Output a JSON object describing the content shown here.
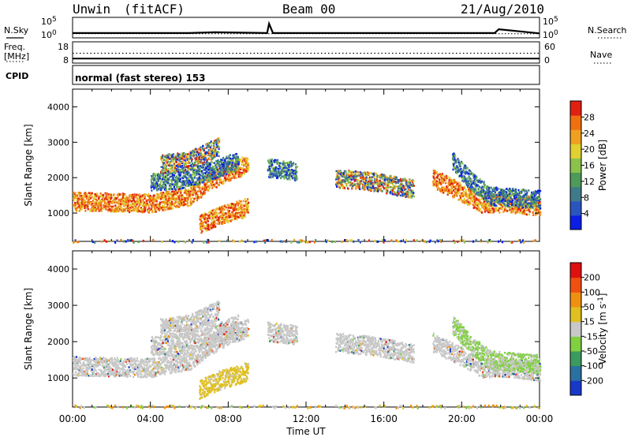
{
  "header": {
    "site": "Unwin",
    "mode": "(fitACF)",
    "beam": "Beam 00",
    "date": "21/Aug/2010"
  },
  "strip_labels": {
    "nsky": "N.Sky",
    "nsearch": "N.Search",
    "freq_line1": "Freq.",
    "freq_line2": "[MHz]",
    "nave": "Nave",
    "cpid": "CPID",
    "cpid_value": "normal (fast stereo) 153"
  },
  "chart_data": [
    {
      "type": "line",
      "name": "noise-strip",
      "y_left_ticks": [
        "10^5",
        "10^0"
      ],
      "y_right_ticks": [
        "10^5",
        "10^0"
      ],
      "series": [
        {
          "name": "N.Sky",
          "style": "solid",
          "x": [
            0,
            6,
            7.3,
            10,
            10.1,
            10.3,
            21.7,
            21.9,
            24
          ],
          "y": [
            1.3,
            1.3,
            1.5,
            1.3,
            3.8,
            1.3,
            1.3,
            2.3,
            1.2
          ]
        },
        {
          "name": "N.Search",
          "style": "dotted",
          "x": [
            0,
            24
          ],
          "y": [
            1.1,
            1.1
          ]
        }
      ]
    },
    {
      "type": "line",
      "name": "freq-nave-strip",
      "y_left_ticks": [
        "18",
        "8"
      ],
      "y_right_ticks": [
        "60",
        "0"
      ],
      "series": [
        {
          "name": "Freq.",
          "style": "dotted",
          "x": [
            0,
            24
          ],
          "y": [
            12.5,
            12.5
          ]
        },
        {
          "name": "Nave",
          "style": "solid",
          "x": [
            0,
            24
          ],
          "y": [
            9,
            9
          ]
        }
      ]
    },
    {
      "type": "heatmap",
      "name": "power-panel",
      "xlabel": "",
      "ylabel": "Slant Range [km]",
      "xlim": [
        0,
        24
      ],
      "ylim": [
        200,
        4500
      ],
      "x_ticks": [
        "00:00",
        "04:00",
        "08:00",
        "12:00",
        "16:00",
        "20:00",
        "00:00"
      ],
      "y_ticks": [
        1000,
        2000,
        3000,
        4000
      ],
      "colorbar": {
        "label": "Power [dB]",
        "ticks": [
          "28",
          "24",
          "20",
          "16",
          "12",
          "8",
          "4"
        ],
        "colors": [
          "#0a1ee6",
          "#2a55bf",
          "#3f7a8a",
          "#4d9a5a",
          "#8ac24a",
          "#e0d030",
          "#f0a020",
          "#f07010",
          "#e02010"
        ]
      },
      "echo_bands": [
        {
          "x": [
            0.0,
            4.0,
            6.0,
            7.0,
            8.0,
            9.0
          ],
          "y": [
            1350,
            1300,
            1500,
            1900,
            2200,
            2400
          ],
          "color": "warm"
        },
        {
          "x": [
            4.0,
            5.5,
            7.0,
            8.5
          ],
          "y": [
            1900,
            1950,
            2200,
            2500
          ],
          "color": "cool"
        },
        {
          "x": [
            4.5,
            6.0,
            7.5
          ],
          "y": [
            2400,
            2500,
            2900
          ],
          "color": "mixed"
        },
        {
          "x": [
            6.5,
            7.5,
            9.0
          ],
          "y": [
            700,
            950,
            1200
          ],
          "color": "warm"
        },
        {
          "x": [
            10.0,
            11.5
          ],
          "y": [
            2300,
            2200
          ],
          "color": "cool"
        },
        {
          "x": [
            13.5,
            15.5,
            17.5
          ],
          "y": [
            2000,
            1900,
            1700
          ],
          "color": "mixed"
        },
        {
          "x": [
            18.5,
            20.0,
            21.0,
            22.5,
            24.0
          ],
          "y": [
            2000,
            1600,
            1300,
            1300,
            1200
          ],
          "color": "warm"
        },
        {
          "x": [
            19.5,
            20.5,
            21.5,
            24.0
          ],
          "y": [
            2500,
            1900,
            1500,
            1400
          ],
          "color": "cool"
        },
        {
          "x": [
            0.0,
            24.0
          ],
          "y": [
            230,
            230
          ],
          "color": "ground"
        }
      ]
    },
    {
      "type": "heatmap",
      "name": "velocity-panel",
      "xlabel": "Time UT",
      "ylabel": "Slant Range [km]",
      "xlim": [
        0,
        24
      ],
      "ylim": [
        200,
        4500
      ],
      "x_ticks": [
        "00:00",
        "04:00",
        "08:00",
        "12:00",
        "16:00",
        "20:00",
        "00:00"
      ],
      "y_ticks": [
        1000,
        2000,
        3000,
        4000
      ],
      "colorbar": {
        "label": "Velocity [m s^-1]",
        "ticks": [
          "200",
          "100",
          "50",
          "15",
          "-15",
          "-50",
          "-100",
          "-200"
        ],
        "colors": [
          "#1838c8",
          "#2a70a0",
          "#3a9a60",
          "#80d040",
          "#c8c8c8",
          "#e0c020",
          "#f09010",
          "#f05010",
          "#e01010"
        ]
      },
      "echo_bands": [
        {
          "x": [
            0.0,
            4.0,
            6.0,
            7.0,
            8.0,
            9.0
          ],
          "y": [
            1350,
            1300,
            1500,
            1900,
            2200,
            2400
          ],
          "color": "grey"
        },
        {
          "x": [
            4.0,
            5.5,
            7.0,
            8.5
          ],
          "y": [
            1900,
            1950,
            2200,
            2500
          ],
          "color": "grey"
        },
        {
          "x": [
            4.5,
            6.0,
            7.5
          ],
          "y": [
            2400,
            2500,
            2900
          ],
          "color": "grey"
        },
        {
          "x": [
            6.5,
            7.5,
            9.0
          ],
          "y": [
            700,
            950,
            1200
          ],
          "color": "orange"
        },
        {
          "x": [
            10.0,
            11.5
          ],
          "y": [
            2300,
            2200
          ],
          "color": "grey"
        },
        {
          "x": [
            13.5,
            15.5,
            17.5
          ],
          "y": [
            2000,
            1900,
            1700
          ],
          "color": "grey"
        },
        {
          "x": [
            18.5,
            20.0,
            21.0,
            22.5,
            24.0
          ],
          "y": [
            2000,
            1600,
            1300,
            1300,
            1200
          ],
          "color": "grey"
        },
        {
          "x": [
            19.5,
            20.5,
            21.5,
            24.0
          ],
          "y": [
            2500,
            1900,
            1500,
            1400
          ],
          "color": "green"
        },
        {
          "x": [
            0.0,
            24.0
          ],
          "y": [
            230,
            230
          ],
          "color": "ground"
        }
      ]
    }
  ]
}
